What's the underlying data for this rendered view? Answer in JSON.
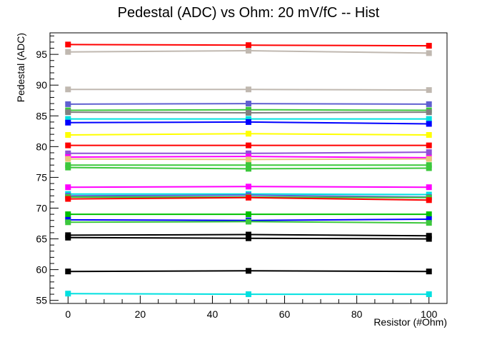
{
  "chart_data": {
    "type": "line",
    "title": "Pedestal (ADC) vs Ohm: 20 mV/fC -- Hist",
    "xlabel": "Resistor (#Ohm)",
    "ylabel": "Pedestal (ADC)",
    "xlim": [
      -5,
      105
    ],
    "ylim": [
      54.5,
      98.5
    ],
    "grid": false,
    "legend": "none",
    "x_ticks": [
      "0",
      "20",
      "40",
      "60",
      "80",
      "100"
    ],
    "y_ticks": [
      "55",
      "60",
      "65",
      "70",
      "75",
      "80",
      "85",
      "90",
      "95"
    ],
    "x": [
      0,
      50,
      100
    ],
    "series": [
      {
        "color": "#ff0000",
        "values": [
          96.6,
          96.5,
          96.4
        ]
      },
      {
        "color": "#c0b8b0",
        "values": [
          95.4,
          95.6,
          95.2
        ]
      },
      {
        "color": "#c0b8b0",
        "values": [
          89.3,
          89.3,
          89.2
        ]
      },
      {
        "color": "#6060d0",
        "values": [
          86.9,
          87.0,
          86.9
        ]
      },
      {
        "color": "#3cc83c",
        "values": [
          85.9,
          86.0,
          85.9
        ]
      },
      {
        "color": "#808080",
        "values": [
          85.6,
          85.5,
          85.6
        ]
      },
      {
        "color": "#00e0e0",
        "values": [
          84.5,
          84.5,
          84.5
        ]
      },
      {
        "color": "#0000ff",
        "values": [
          83.9,
          84.0,
          83.7
        ]
      },
      {
        "color": "#ffff00",
        "values": [
          81.9,
          82.1,
          81.9
        ]
      },
      {
        "color": "#ff0000",
        "values": [
          80.2,
          80.2,
          80.2
        ]
      },
      {
        "color": "#9050d8",
        "values": [
          78.9,
          78.9,
          79.1
        ]
      },
      {
        "color": "#ff00ff",
        "values": [
          78.3,
          78.4,
          78.2
        ]
      },
      {
        "color": "#e8c878",
        "values": [
          78.0,
          77.9,
          78.0
        ]
      },
      {
        "color": "#3cc83c",
        "values": [
          77.0,
          77.0,
          77.0
        ]
      },
      {
        "color": "#3cc83c",
        "values": [
          76.6,
          76.4,
          76.5
        ]
      },
      {
        "color": "#ff00ff",
        "values": [
          73.4,
          73.5,
          73.4
        ]
      },
      {
        "color": "#00e0e0",
        "values": [
          72.3,
          72.3,
          72.2
        ]
      },
      {
        "color": "#6060d0",
        "values": [
          72.0,
          72.1,
          71.8
        ]
      },
      {
        "color": "#3cc83c",
        "values": [
          71.8,
          71.8,
          71.7
        ]
      },
      {
        "color": "#ff0000",
        "values": [
          71.5,
          71.7,
          71.3
        ]
      },
      {
        "color": "#00c000",
        "values": [
          69.0,
          69.0,
          69.0
        ]
      },
      {
        "color": "#0000ff",
        "values": [
          68.1,
          68.0,
          68.2
        ]
      },
      {
        "color": "#3cc83c",
        "values": [
          67.7,
          67.8,
          67.6
        ]
      },
      {
        "color": "#000000",
        "values": [
          65.6,
          65.7,
          65.5
        ]
      },
      {
        "color": "#000000",
        "values": [
          65.2,
          65.1,
          65.0
        ]
      },
      {
        "color": "#000000",
        "values": [
          59.7,
          59.8,
          59.7
        ]
      },
      {
        "color": "#00e0e0",
        "values": [
          56.1,
          56.0,
          56.0
        ]
      }
    ]
  }
}
